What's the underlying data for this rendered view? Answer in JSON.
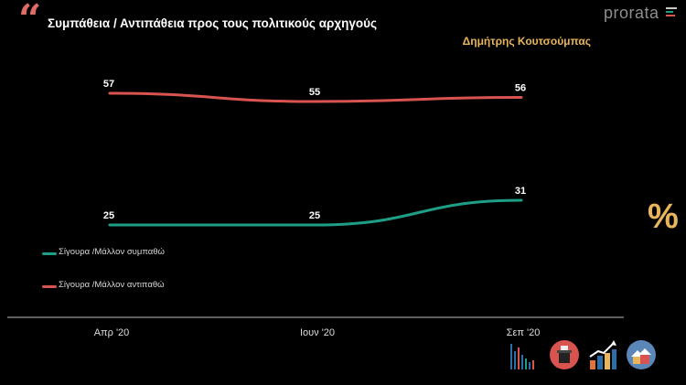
{
  "header": {
    "quote_glyph": "“",
    "title": "Συμπάθεια / Αντιπάθεια προς τους πολιτικούς αρχηγούς",
    "subtitle": "Δημήτρης Κουτσούμπας",
    "brand": "prorata",
    "percent_symbol": "%"
  },
  "colors": {
    "positive": "#1e9e86",
    "negative": "#d9544f",
    "accent": "#e8b55a",
    "axis": "#bbbbbb"
  },
  "chart_data": {
    "type": "line",
    "categories": [
      "Απρ '20",
      "Ιουν '20",
      "Σεπ '20"
    ],
    "series": [
      {
        "name": "Σίγουρα /Μάλλον συμπαθώ",
        "color": "#1e9e86",
        "values": [
          25,
          25,
          31
        ]
      },
      {
        "name": "Σίγουρα /Μάλλον αντιπαθώ",
        "color": "#d9544f",
        "values": [
          57,
          55,
          56
        ]
      }
    ],
    "title": "Συμπάθεια / Αντιπάθεια προς τους πολιτικούς αρχηγούς",
    "subtitle": "Δημήτρης Κουτσούμπας",
    "xlabel": "",
    "ylabel": "",
    "grid": false,
    "legend": "left"
  },
  "footer_icons": [
    "bar-chart-icon",
    "poll-box-icon",
    "trend-up-icon",
    "houses-icon"
  ]
}
